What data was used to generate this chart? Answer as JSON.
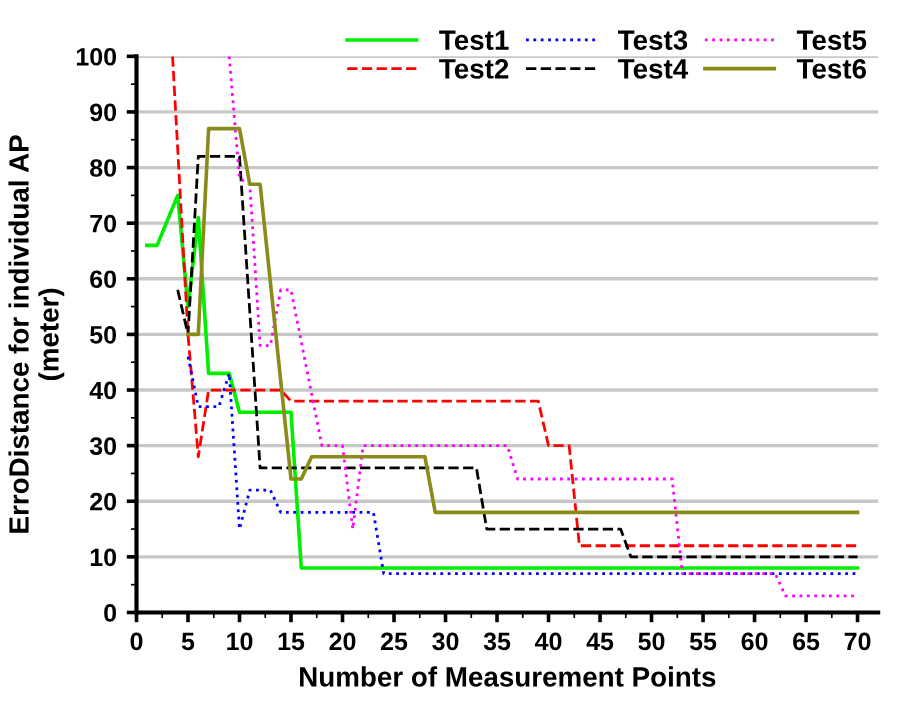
{
  "chart_data": {
    "type": "line",
    "xlabel": "Number of Measurement Points",
    "ylabel": "ErroDistance for individual AP\n(meter)",
    "xlim": [
      0,
      72
    ],
    "ylim": [
      0,
      100
    ],
    "xticks": [
      0,
      5,
      10,
      15,
      20,
      25,
      30,
      35,
      40,
      45,
      50,
      55,
      60,
      65,
      70
    ],
    "yticks": [
      0,
      10,
      20,
      30,
      40,
      50,
      60,
      70,
      80,
      90,
      100
    ],
    "grid": "y",
    "legend": "top",
    "marker": "none",
    "series": [
      {
        "name": "Test1",
        "color": "#00ee00",
        "line_style": "solid",
        "x": [
          1,
          2,
          4,
          5,
          6,
          7,
          9,
          10,
          15,
          16,
          70
        ],
        "values": [
          66,
          66,
          75,
          55,
          71,
          43,
          43,
          36,
          36,
          8,
          8
        ]
      },
      {
        "name": "Test2",
        "color": "#ff0000",
        "line_style": "dashed",
        "x": [
          3.5,
          5,
          6,
          7,
          14,
          15,
          39,
          40,
          42,
          43,
          70
        ],
        "values": [
          100,
          50,
          28,
          40,
          40,
          38,
          38,
          30,
          30,
          12,
          12
        ]
      },
      {
        "name": "Test3",
        "color": "#0000ff",
        "line_style": "dotted",
        "x": [
          5,
          6,
          8,
          9,
          10,
          11,
          13,
          14,
          23,
          24,
          70
        ],
        "values": [
          46,
          37,
          37,
          43,
          15,
          22,
          22,
          18,
          18,
          7,
          7
        ]
      },
      {
        "name": "Test4",
        "color": "#000000",
        "line_style": "dashed",
        "x": [
          4,
          5,
          6,
          10,
          12,
          33,
          34,
          47,
          48,
          70
        ],
        "values": [
          58,
          50,
          82,
          82,
          26,
          26,
          15,
          15,
          10,
          10
        ]
      },
      {
        "name": "Test5",
        "color": "#ff00ff",
        "line_style": "dotted",
        "x": [
          9,
          10,
          11,
          12,
          13,
          14,
          15,
          18,
          20,
          21,
          22,
          36,
          37,
          52,
          53,
          62,
          63,
          70
        ],
        "values": [
          100,
          78,
          77,
          48,
          48,
          58,
          58,
          30,
          30,
          15,
          30,
          30,
          24,
          24,
          7,
          7,
          3,
          3
        ]
      },
      {
        "name": "Test6",
        "color": "#8b8b1a",
        "line_style": "solid",
        "x": [
          5,
          6,
          7,
          10,
          11,
          12,
          15,
          16,
          17,
          28,
          29,
          70
        ],
        "values": [
          50,
          50,
          87,
          87,
          77,
          77,
          24,
          24,
          28,
          28,
          18,
          18
        ]
      }
    ]
  }
}
